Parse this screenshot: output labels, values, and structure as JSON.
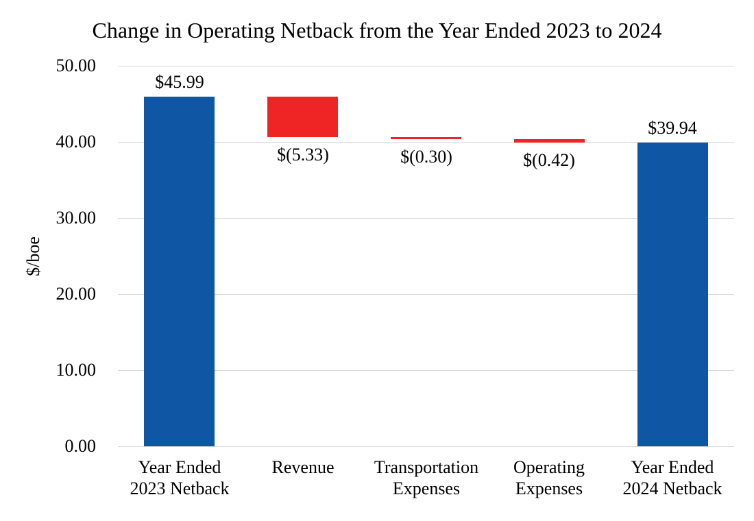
{
  "chart_data": {
    "type": "bar",
    "subtype": "waterfall",
    "title": "Change in Operating Netback from the Year Ended 2023 to 2024",
    "ylabel": "$/boe",
    "xlabel": "",
    "ylim": [
      0,
      50
    ],
    "grid": true,
    "legend": false,
    "ytick_labels": [
      "50.00",
      "40.00",
      "30.00",
      "20.00",
      "10.00",
      "0.00"
    ],
    "colors": {
      "total": "#0F57A5",
      "decrease": "#EE2524",
      "gridline": "#D9D9D9",
      "text": "#000000",
      "background": "#FFFFFF"
    },
    "categories": [
      "Year Ended 2023 Netback",
      "Revenue",
      "Transportation Expenses",
      "Operating Expenses",
      "Year Ended 2024 Netback"
    ],
    "bars": [
      {
        "category_lines": [
          "Year Ended",
          "2023 Netback"
        ],
        "value": 45.99,
        "from": 0,
        "to": 45.99,
        "color": "total",
        "value_label": "$45.99",
        "label_position": "above"
      },
      {
        "category_lines": [
          "Revenue"
        ],
        "value": -5.33,
        "from": 45.99,
        "to": 40.66,
        "color": "decrease",
        "value_label": "$(5.33)",
        "label_position": "below"
      },
      {
        "category_lines": [
          "Transportation",
          "Expenses"
        ],
        "value": -0.3,
        "from": 40.66,
        "to": 40.36,
        "color": "decrease",
        "value_label": "$(0.30)",
        "label_position": "below"
      },
      {
        "category_lines": [
          "Operating",
          "Expenses"
        ],
        "value": -0.42,
        "from": 40.36,
        "to": 39.94,
        "color": "decrease",
        "value_label": "$(0.42)",
        "label_position": "below"
      },
      {
        "category_lines": [
          "Year Ended",
          "2024 Netback"
        ],
        "value": 39.94,
        "from": 0,
        "to": 39.94,
        "color": "total",
        "value_label": "$39.94",
        "label_position": "above"
      }
    ]
  }
}
